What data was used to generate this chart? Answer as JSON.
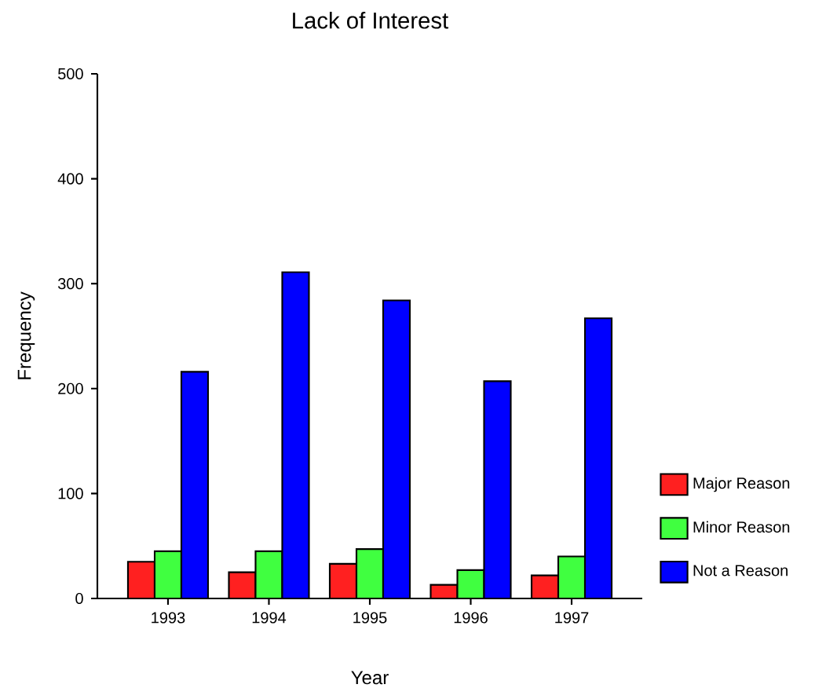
{
  "chart_data": {
    "type": "bar",
    "title": "Lack of Interest",
    "xlabel": "Year",
    "ylabel": "Frequency",
    "categories": [
      "1993",
      "1994",
      "1995",
      "1996",
      "1997"
    ],
    "series": [
      {
        "name": "Major Reason",
        "color": "#ff2020",
        "values": [
          35,
          25,
          33,
          13,
          22
        ]
      },
      {
        "name": "Minor Reason",
        "color": "#40ff40",
        "values": [
          45,
          45,
          47,
          27,
          40
        ]
      },
      {
        "name": "Not a Reason",
        "color": "#0000ff",
        "values": [
          216,
          311,
          284,
          207,
          267
        ]
      }
    ],
    "ylim": [
      0,
      500
    ],
    "yticks": [
      0,
      100,
      200,
      300,
      400,
      500
    ],
    "grid": false,
    "legend": "right"
  }
}
